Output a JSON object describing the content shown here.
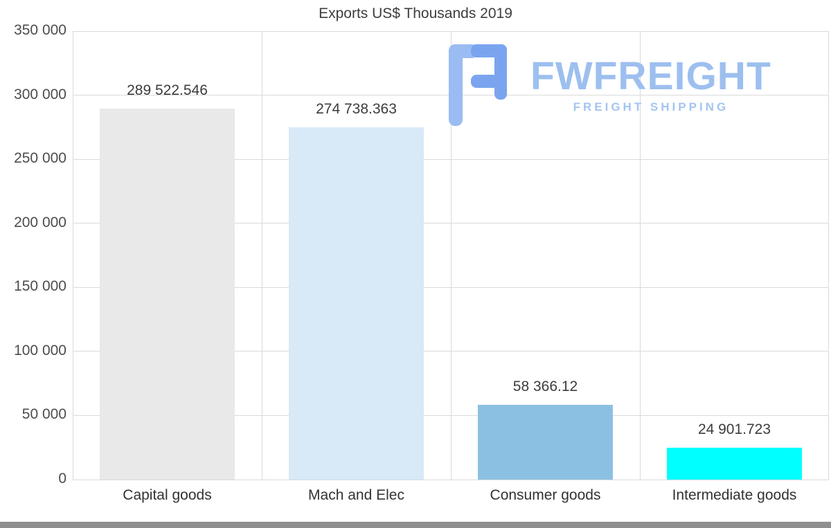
{
  "chart_data": {
    "type": "bar",
    "title": "Exports US$ Thousands 2019",
    "categories": [
      "Capital goods",
      "Mach and Elec",
      "Consumer goods",
      "Intermediate goods"
    ],
    "values": [
      289522.546,
      274738.363,
      58366.12,
      24901.723
    ],
    "value_labels": [
      "289 522.546",
      "274 738.363",
      "58 366.12",
      "24 901.723"
    ],
    "bar_colors": [
      "#e9e9e9",
      "#d8e9f8",
      "#8cc0e2",
      "#00ffff"
    ],
    "xlabel": "",
    "ylabel": "",
    "ylim": [
      0,
      350000
    ],
    "ytick_step": 50000,
    "ytick_labels": [
      "0",
      "50 000",
      "100 000",
      "150 000",
      "200 000",
      "250 000",
      "300 000",
      "350 000"
    ],
    "grid": true,
    "legend_position": "none"
  },
  "watermark": {
    "brand": "FWFREIGHT",
    "tagline": "FREIGHT SHIPPING",
    "brand_color": "#9dbfef",
    "icon_color_dark": "#7aa5ee",
    "icon_color_light": "#9abcf2"
  }
}
